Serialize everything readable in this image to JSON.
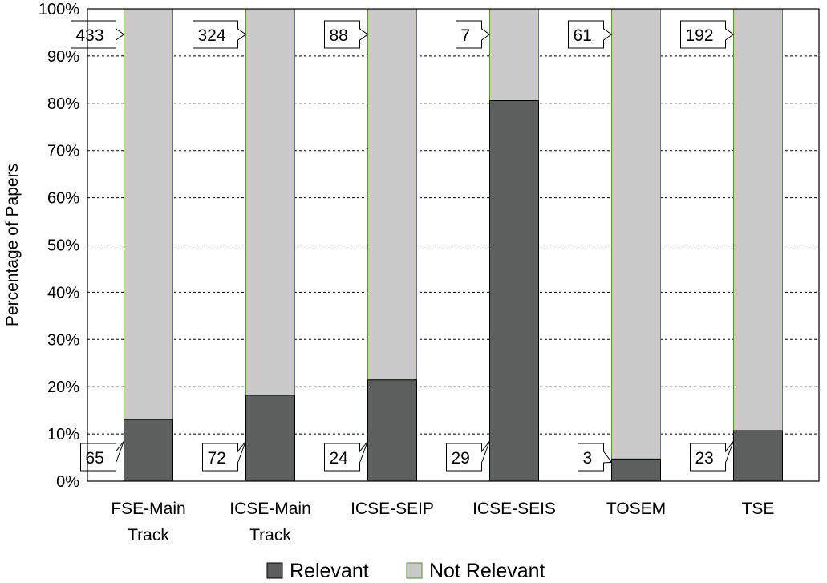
{
  "chart_data": {
    "type": "bar",
    "stacked": true,
    "normalized": true,
    "categories": [
      [
        "FSE-Main",
        "Track"
      ],
      [
        "ICSE-Main",
        "Track"
      ],
      [
        "ICSE-SEIP"
      ],
      [
        "ICSE-SEIS"
      ],
      [
        "TOSEM"
      ],
      [
        "TSE"
      ]
    ],
    "series": [
      {
        "name": "Relevant",
        "values": [
          65,
          72,
          24,
          29,
          3,
          23
        ],
        "color": "#5d5f5e"
      },
      {
        "name": "Not Relevant",
        "values": [
          433,
          324,
          88,
          7,
          61,
          192
        ],
        "color": "#c9c9c9"
      }
    ],
    "ylabel": "Percentage of Papers",
    "ylim": [
      0,
      100
    ],
    "yticks": [
      "0%",
      "10%",
      "20%",
      "30%",
      "40%",
      "50%",
      "60%",
      "70%",
      "80%",
      "90%",
      "100%"
    ],
    "grid": true,
    "legend": "bottom",
    "bar_outline_color": "#5a8a3a"
  }
}
